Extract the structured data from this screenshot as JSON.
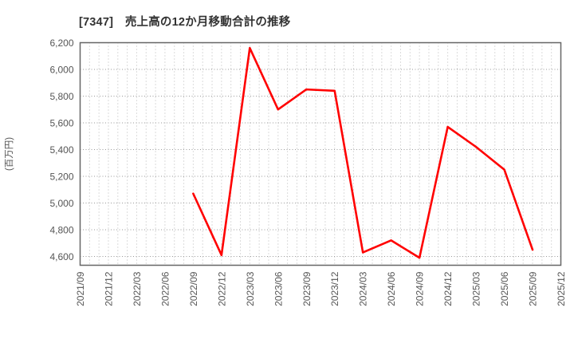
{
  "colors": {
    "background": "#ffffff",
    "title_text": "#333333",
    "axis_text": "#555555",
    "frame": "#666666",
    "grid_major": "#999999",
    "grid_minor": "#b8b8b8",
    "line": "#ff0000"
  },
  "chart_data": {
    "type": "line",
    "title": "[7347]　売上高の12か月移動合計の推移",
    "ylabel": "(百万円)",
    "legend": "none",
    "grid": true,
    "x_range": {
      "start": "2021/09",
      "end": "2025/12",
      "minor_step_months": 1,
      "label_step_months": 3
    },
    "x_tick_labels": [
      "2021/09",
      "2021/12",
      "2022/03",
      "2022/06",
      "2022/09",
      "2022/12",
      "2023/03",
      "2023/06",
      "2023/09",
      "2023/12",
      "2024/03",
      "2024/06",
      "2024/09",
      "2024/12",
      "2025/03",
      "2025/06",
      "2025/09",
      "2025/12"
    ],
    "y_ticks": [
      4600,
      4800,
      5000,
      5200,
      5400,
      5600,
      5800,
      6000,
      6200
    ],
    "ylim": [
      4534,
      6200
    ],
    "series": [
      {
        "color": "#ff0000",
        "x": [
          "2022/09",
          "2022/12",
          "2023/03",
          "2023/06",
          "2023/09",
          "2023/12",
          "2024/03",
          "2024/06",
          "2024/09",
          "2024/12",
          "2025/03",
          "2025/06",
          "2025/09"
        ],
        "y": [
          5070,
          4610,
          6160,
          5700,
          5850,
          5840,
          4630,
          4720,
          4590,
          5570,
          5420,
          5250,
          4650
        ]
      }
    ]
  }
}
